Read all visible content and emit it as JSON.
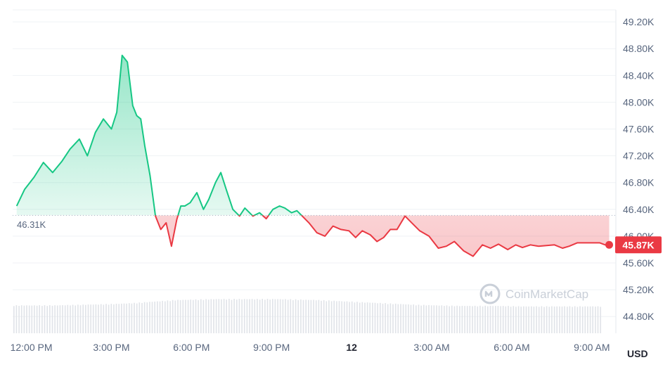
{
  "currency": "USD",
  "watermark": {
    "text": "CoinMarketCap",
    "icon": "coinmarketcap-logo-icon"
  },
  "reference_label": "46.31K",
  "last_price_label": "45.87K",
  "colors": {
    "up": "#16c784",
    "down": "#ea3943",
    "grid": "#eff2f5",
    "volume": "#e0e3e8",
    "axis_text": "#58667e"
  },
  "chart_data": {
    "type": "area",
    "reference_value": 46.31,
    "ylim": [
      44.55,
      49.38
    ],
    "xlim": [
      11.3,
      33.9
    ],
    "y_ticks": [
      {
        "v": 44.8,
        "label": "44.80K"
      },
      {
        "v": 45.2,
        "label": "45.20K"
      },
      {
        "v": 45.6,
        "label": "45.60K"
      },
      {
        "v": 46.0,
        "label": "46.00K"
      },
      {
        "v": 46.4,
        "label": "46.40K"
      },
      {
        "v": 46.8,
        "label": "46.80K"
      },
      {
        "v": 47.2,
        "label": "47.20K"
      },
      {
        "v": 47.6,
        "label": "47.60K"
      },
      {
        "v": 48.0,
        "label": "48.00K"
      },
      {
        "v": 48.4,
        "label": "48.40K"
      },
      {
        "v": 48.8,
        "label": "48.80K"
      },
      {
        "v": 49.2,
        "label": "49.20K"
      }
    ],
    "x_ticks": [
      {
        "v": 12,
        "label": "12:00 PM"
      },
      {
        "v": 15,
        "label": "3:00 PM"
      },
      {
        "v": 18,
        "label": "6:00 PM"
      },
      {
        "v": 21,
        "label": "9:00 PM"
      },
      {
        "v": 24,
        "label": "12",
        "bold": true
      },
      {
        "v": 27,
        "label": "3:00 AM"
      },
      {
        "v": 30,
        "label": "6:00 AM"
      },
      {
        "v": 33,
        "label": "9:00 AM"
      }
    ],
    "series": [
      {
        "x": [
          11.45,
          11.75,
          12.1,
          12.45,
          12.8,
          13.15,
          13.45,
          13.8,
          14.1,
          14.4,
          14.7,
          15.0,
          15.2,
          15.4,
          15.6,
          15.8,
          15.95,
          16.1,
          16.25,
          16.45,
          16.65,
          16.85,
          17.05,
          17.25,
          17.45,
          17.6,
          17.75,
          17.95,
          18.2,
          18.45,
          18.65,
          18.9,
          19.1,
          19.3,
          19.55,
          19.8,
          20.0,
          20.3,
          20.55,
          20.8,
          21.05,
          21.3,
          21.5,
          21.75,
          21.95,
          22.15,
          22.4,
          22.7,
          23.0,
          23.3,
          23.6,
          23.9,
          24.15,
          24.4,
          24.7,
          24.95,
          25.2,
          25.45,
          25.7,
          26.0,
          26.25,
          26.55,
          26.9,
          27.25,
          27.55,
          27.85,
          28.2,
          28.55,
          28.9,
          29.2,
          29.5,
          29.85,
          30.15,
          30.4,
          30.7,
          31.0,
          31.3,
          31.6,
          31.9,
          32.15,
          32.45,
          32.75,
          33.05,
          33.3,
          33.5,
          33.65
        ],
        "y": [
          46.45,
          46.7,
          46.88,
          47.1,
          46.95,
          47.12,
          47.3,
          47.45,
          47.2,
          47.55,
          47.75,
          47.6,
          47.85,
          48.7,
          48.6,
          47.95,
          47.8,
          47.75,
          47.35,
          46.9,
          46.3,
          46.1,
          46.2,
          45.85,
          46.25,
          46.45,
          46.45,
          46.5,
          46.65,
          46.4,
          46.55,
          46.8,
          46.95,
          46.7,
          46.4,
          46.3,
          46.42,
          46.3,
          46.35,
          46.26,
          46.4,
          46.45,
          46.42,
          46.35,
          46.38,
          46.3,
          46.2,
          46.05,
          46.0,
          46.15,
          46.1,
          46.08,
          45.98,
          46.08,
          46.02,
          45.92,
          45.98,
          46.1,
          46.1,
          46.3,
          46.2,
          46.08,
          46.0,
          45.82,
          45.85,
          45.92,
          45.78,
          45.7,
          45.87,
          45.82,
          45.88,
          45.8,
          45.87,
          45.83,
          45.87,
          45.85,
          45.86,
          45.87,
          45.82,
          45.85,
          45.9,
          45.9,
          45.9,
          45.9,
          45.87,
          45.87
        ]
      }
    ],
    "volume": [
      0.57,
      0.57,
      0.57,
      0.58,
      0.59,
      0.6,
      0.62,
      0.65,
      0.68,
      0.69,
      0.7,
      0.7,
      0.7,
      0.7,
      0.69,
      0.68,
      0.66,
      0.64,
      0.62,
      0.6,
      0.58,
      0.57,
      0.56,
      0.56,
      0.56,
      0.55,
      0.55,
      0.55,
      0.55,
      0.55
    ]
  }
}
